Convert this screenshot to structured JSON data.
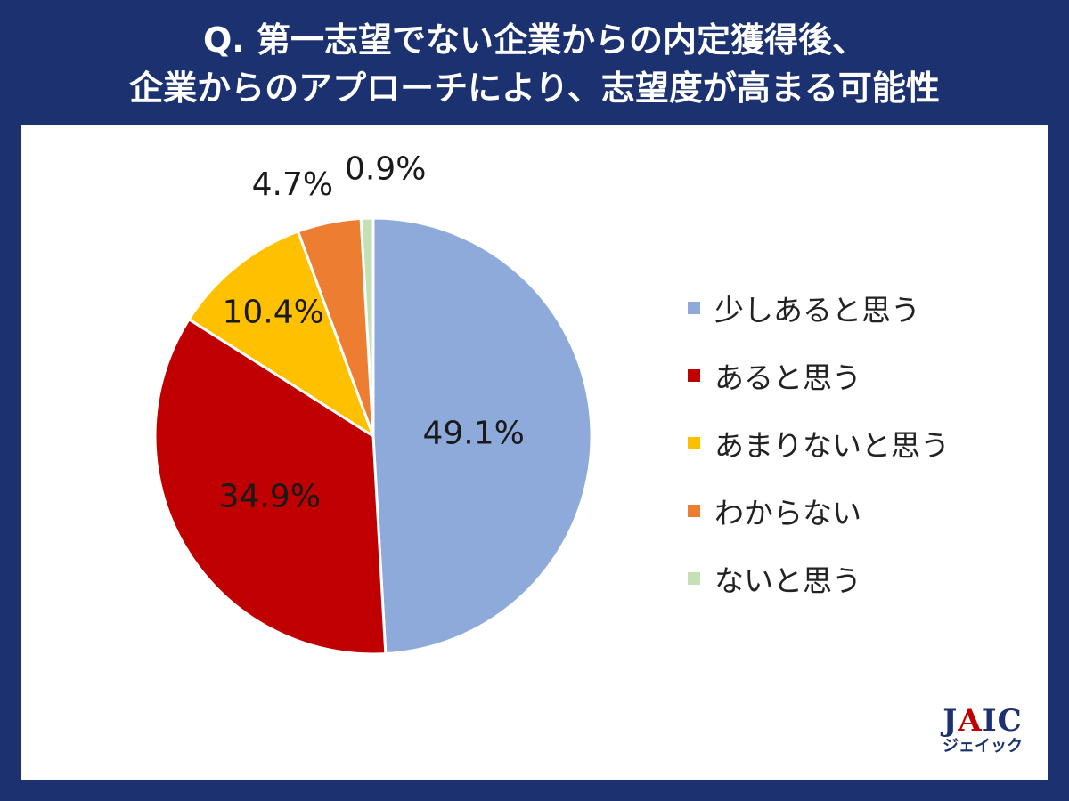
{
  "header": {
    "title_line1": "Q. 第一志望でない企業からの内定獲得後、",
    "title_line2": "企業からのアプローチにより、志望度が高まる可能性"
  },
  "chart_data": {
    "type": "pie",
    "title": "",
    "legend_position": "right",
    "start_angle_deg": 0,
    "direction": "clockwise",
    "slices": [
      {
        "label": "少しあると思う",
        "value": 49.1,
        "display": "49.1%",
        "color": "#8eaadb"
      },
      {
        "label": "あると思う",
        "value": 34.9,
        "display": "34.9%",
        "color": "#c00000"
      },
      {
        "label": "あまりないと思う",
        "value": 10.4,
        "display": "10.4%",
        "color": "#ffc000"
      },
      {
        "label": "わからない",
        "value": 4.7,
        "display": "4.7%",
        "color": "#ed7d31"
      },
      {
        "label": "ないと思う",
        "value": 0.9,
        "display": "0.9%",
        "color": "#c5e0b4"
      }
    ]
  },
  "brand": {
    "logo_text_a": "J",
    "logo_text_b": "A",
    "logo_text_c": "IC",
    "logo_sub": "ジェイック"
  }
}
